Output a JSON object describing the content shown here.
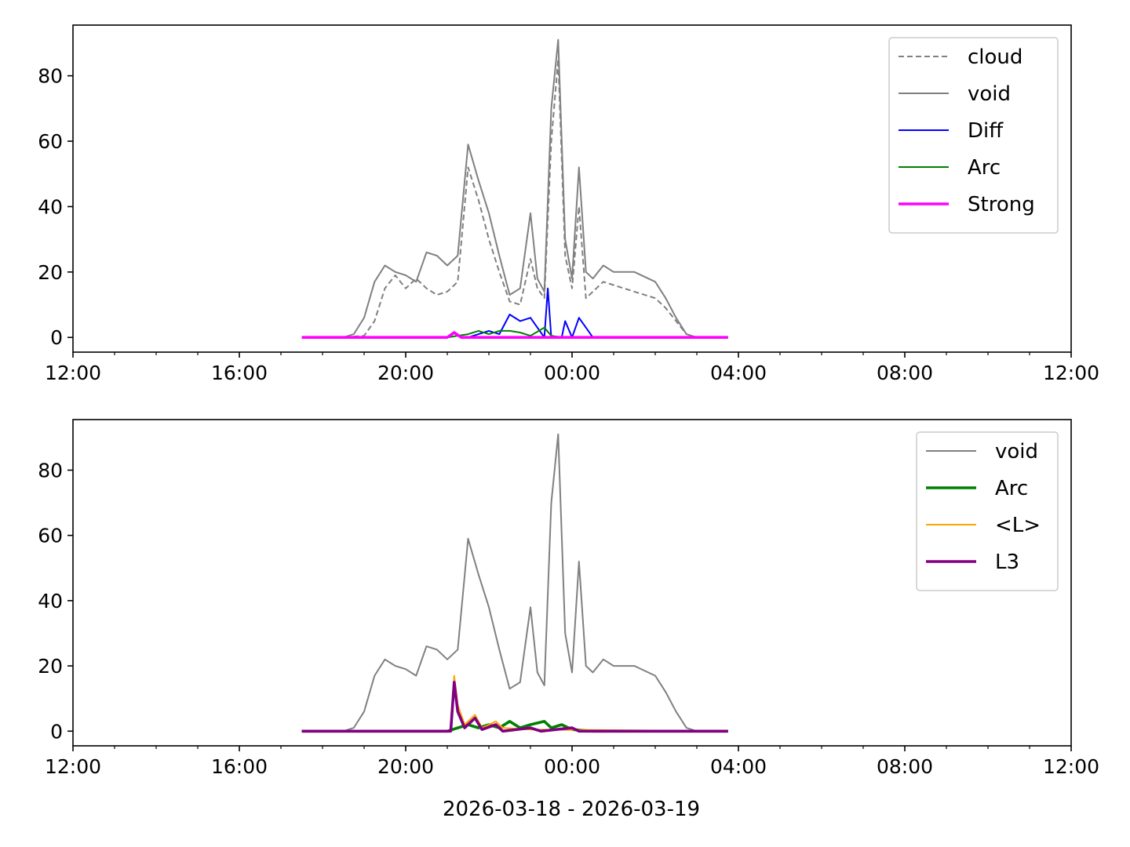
{
  "figure": {
    "xlabel": "2026-03-18 - 2026-03-19"
  },
  "chart_data": [
    {
      "type": "line",
      "title": "",
      "xlabel": "",
      "ylabel": "",
      "x_unit": "time of day (12:00 on 2026-03-18 to 12:00 on 2026-03-19)",
      "xlim": [
        "12:00",
        "12:00"
      ],
      "x_ticks": [
        "12:00",
        "16:00",
        "20:00",
        "00:00",
        "04:00",
        "08:00",
        "12:00"
      ],
      "ylim": [
        -4.5,
        95.5
      ],
      "y_ticks": [
        0,
        20,
        40,
        60,
        80
      ],
      "legend_position": "top-right",
      "grid": false,
      "series": [
        {
          "name": "cloud",
          "color": "#808080",
          "style": "dashed",
          "points": [
            [
              "17:30",
              0
            ],
            [
              "18:30",
              0
            ],
            [
              "19:00",
              0.5
            ],
            [
              "19:15",
              5
            ],
            [
              "19:30",
              15
            ],
            [
              "19:45",
              19
            ],
            [
              "20:00",
              15
            ],
            [
              "20:15",
              18
            ],
            [
              "20:30",
              15
            ],
            [
              "20:45",
              13
            ],
            [
              "21:00",
              14
            ],
            [
              "21:15",
              17
            ],
            [
              "21:30",
              52
            ],
            [
              "21:45",
              42
            ],
            [
              "22:00",
              30
            ],
            [
              "22:15",
              20
            ],
            [
              "22:30",
              11
            ],
            [
              "22:45",
              10
            ],
            [
              "23:00",
              24
            ],
            [
              "23:10",
              15
            ],
            [
              "23:20",
              12
            ],
            [
              "23:30",
              60
            ],
            [
              "23:40",
              85
            ],
            [
              "23:50",
              25
            ],
            [
              "00:00",
              15
            ],
            [
              "00:10",
              40
            ],
            [
              "00:20",
              12
            ],
            [
              "00:30",
              14
            ],
            [
              "00:45",
              17
            ],
            [
              "01:00",
              16
            ],
            [
              "01:30",
              14
            ],
            [
              "02:00",
              12
            ],
            [
              "02:15",
              9
            ],
            [
              "02:30",
              5
            ],
            [
              "02:45",
              1
            ],
            [
              "03:00",
              0
            ],
            [
              "03:45",
              0
            ]
          ]
        },
        {
          "name": "void",
          "color": "#808080",
          "style": "solid",
          "points": [
            [
              "17:30",
              0
            ],
            [
              "18:30",
              0
            ],
            [
              "18:45",
              1
            ],
            [
              "19:00",
              6
            ],
            [
              "19:15",
              17
            ],
            [
              "19:30",
              22
            ],
            [
              "19:45",
              20
            ],
            [
              "20:00",
              19
            ],
            [
              "20:15",
              17
            ],
            [
              "20:30",
              26
            ],
            [
              "20:45",
              25
            ],
            [
              "21:00",
              22
            ],
            [
              "21:15",
              25
            ],
            [
              "21:30",
              59
            ],
            [
              "21:45",
              48
            ],
            [
              "22:00",
              38
            ],
            [
              "22:15",
              25
            ],
            [
              "22:30",
              13
            ],
            [
              "22:45",
              15
            ],
            [
              "23:00",
              38
            ],
            [
              "23:10",
              18
            ],
            [
              "23:20",
              14
            ],
            [
              "23:30",
              70
            ],
            [
              "23:40",
              91
            ],
            [
              "23:50",
              30
            ],
            [
              "00:00",
              18
            ],
            [
              "00:10",
              52
            ],
            [
              "00:20",
              20
            ],
            [
              "00:30",
              18
            ],
            [
              "00:45",
              22
            ],
            [
              "01:00",
              20
            ],
            [
              "01:30",
              20
            ],
            [
              "02:00",
              17
            ],
            [
              "02:15",
              12
            ],
            [
              "02:30",
              6
            ],
            [
              "02:45",
              1
            ],
            [
              "03:00",
              0
            ],
            [
              "03:45",
              0
            ]
          ]
        },
        {
          "name": "Diff",
          "color": "#0000ff",
          "style": "solid",
          "points": [
            [
              "21:30",
              0
            ],
            [
              "21:45",
              1
            ],
            [
              "22:00",
              2
            ],
            [
              "22:15",
              1
            ],
            [
              "22:30",
              7
            ],
            [
              "22:45",
              5
            ],
            [
              "23:00",
              6
            ],
            [
              "23:10",
              3
            ],
            [
              "23:20",
              0
            ],
            [
              "23:25",
              15
            ],
            [
              "23:30",
              0
            ],
            [
              "23:45",
              0
            ],
            [
              "23:50",
              5
            ],
            [
              "00:00",
              0
            ],
            [
              "00:10",
              6
            ],
            [
              "00:20",
              3
            ],
            [
              "00:30",
              0
            ]
          ]
        },
        {
          "name": "Arc",
          "color": "#008000",
          "style": "solid",
          "points": [
            [
              "21:00",
              0
            ],
            [
              "21:15",
              0.5
            ],
            [
              "21:30",
              1
            ],
            [
              "21:45",
              2
            ],
            [
              "22:00",
              1
            ],
            [
              "22:15",
              2
            ],
            [
              "22:30",
              2
            ],
            [
              "22:45",
              1.5
            ],
            [
              "23:00",
              0.5
            ],
            [
              "23:20",
              3
            ],
            [
              "23:30",
              0.5
            ],
            [
              "23:45",
              0
            ],
            [
              "00:00",
              0
            ]
          ]
        },
        {
          "name": "Strong",
          "color": "#ff00ff",
          "style": "solid-thick",
          "points": [
            [
              "17:30",
              0
            ],
            [
              "21:00",
              0
            ],
            [
              "21:10",
              1.5
            ],
            [
              "21:20",
              0
            ],
            [
              "03:45",
              0
            ]
          ]
        }
      ]
    },
    {
      "type": "line",
      "title": "",
      "xlabel": "",
      "ylabel": "",
      "x_unit": "time of day (12:00 on 2026-03-18 to 12:00 on 2026-03-19)",
      "xlim": [
        "12:00",
        "12:00"
      ],
      "x_ticks": [
        "12:00",
        "16:00",
        "20:00",
        "00:00",
        "04:00",
        "08:00",
        "12:00"
      ],
      "ylim": [
        -4.5,
        95.5
      ],
      "y_ticks": [
        0,
        20,
        40,
        60,
        80
      ],
      "legend_position": "top-right",
      "grid": false,
      "series": [
        {
          "name": "void",
          "color": "#808080",
          "style": "solid",
          "points": [
            [
              "17:30",
              0
            ],
            [
              "18:30",
              0
            ],
            [
              "18:45",
              1
            ],
            [
              "19:00",
              6
            ],
            [
              "19:15",
              17
            ],
            [
              "19:30",
              22
            ],
            [
              "19:45",
              20
            ],
            [
              "20:00",
              19
            ],
            [
              "20:15",
              17
            ],
            [
              "20:30",
              26
            ],
            [
              "20:45",
              25
            ],
            [
              "21:00",
              22
            ],
            [
              "21:15",
              25
            ],
            [
              "21:30",
              59
            ],
            [
              "21:45",
              48
            ],
            [
              "22:00",
              38
            ],
            [
              "22:15",
              25
            ],
            [
              "22:30",
              13
            ],
            [
              "22:45",
              15
            ],
            [
              "23:00",
              38
            ],
            [
              "23:10",
              18
            ],
            [
              "23:20",
              14
            ],
            [
              "23:30",
              70
            ],
            [
              "23:40",
              91
            ],
            [
              "23:50",
              30
            ],
            [
              "00:00",
              18
            ],
            [
              "00:10",
              52
            ],
            [
              "00:20",
              20
            ],
            [
              "00:30",
              18
            ],
            [
              "00:45",
              22
            ],
            [
              "01:00",
              20
            ],
            [
              "01:30",
              20
            ],
            [
              "02:00",
              17
            ],
            [
              "02:15",
              12
            ],
            [
              "02:30",
              6
            ],
            [
              "02:45",
              1
            ],
            [
              "03:00",
              0
            ],
            [
              "03:45",
              0
            ]
          ]
        },
        {
          "name": "Arc",
          "color": "#008000",
          "style": "solid-thick",
          "points": [
            [
              "17:30",
              0
            ],
            [
              "21:00",
              0
            ],
            [
              "21:15",
              1
            ],
            [
              "21:30",
              2
            ],
            [
              "21:45",
              1
            ],
            [
              "22:00",
              2
            ],
            [
              "22:15",
              1
            ],
            [
              "22:30",
              3
            ],
            [
              "22:45",
              1
            ],
            [
              "23:00",
              2
            ],
            [
              "23:20",
              3
            ],
            [
              "23:30",
              1
            ],
            [
              "23:45",
              2
            ],
            [
              "00:00",
              0.5
            ],
            [
              "00:30",
              0
            ],
            [
              "03:45",
              0
            ]
          ]
        },
        {
          "name": "<L>",
          "color": "#ffa500",
          "style": "solid",
          "points": [
            [
              "17:30",
              0
            ],
            [
              "21:05",
              0
            ],
            [
              "21:10",
              17
            ],
            [
              "21:15",
              8
            ],
            [
              "21:25",
              2
            ],
            [
              "21:40",
              5
            ],
            [
              "21:50",
              1
            ],
            [
              "22:10",
              3
            ],
            [
              "22:20",
              1
            ],
            [
              "23:00",
              0.5
            ],
            [
              "03:45",
              0
            ]
          ]
        },
        {
          "name": "L3",
          "color": "#800080",
          "style": "solid-thick",
          "points": [
            [
              "17:30",
              0
            ],
            [
              "21:05",
              0
            ],
            [
              "21:10",
              15
            ],
            [
              "21:15",
              6
            ],
            [
              "21:25",
              1
            ],
            [
              "21:40",
              4
            ],
            [
              "21:50",
              0.5
            ],
            [
              "22:10",
              2
            ],
            [
              "22:20",
              0
            ],
            [
              "23:00",
              1
            ],
            [
              "23:15",
              0
            ],
            [
              "00:00",
              1
            ],
            [
              "00:10",
              0
            ],
            [
              "03:45",
              0
            ]
          ]
        }
      ]
    }
  ]
}
